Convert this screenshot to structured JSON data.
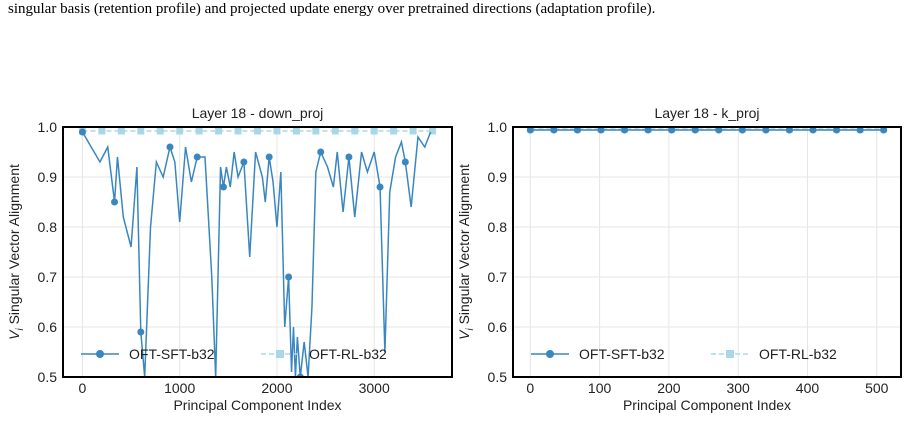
{
  "caption": "singular basis (retention profile) and projected update energy over pretrained directions (adaptation profile).",
  "colors": {
    "sft": "#3a87bf",
    "rl": "#a8d8e8",
    "grid": "#e6e6e6",
    "frame": "#000000"
  },
  "chart_data": [
    {
      "type": "line",
      "title": "Layer 18 - down_proj",
      "xlabel": "Principal Component Index",
      "ylabel": "V_i Singular Vector Alignment",
      "ylabel_parts": {
        "symbol": "V",
        "sub": "i",
        "rest": " Singular Vector Alignment"
      },
      "xlim": [
        -200,
        3800
      ],
      "ylim": [
        0.5,
        1.0
      ],
      "xticks": [
        0,
        1000,
        2000,
        3000
      ],
      "yticks": [
        0.5,
        0.6,
        0.7,
        0.8,
        0.9,
        1.0
      ],
      "xticklabels": [
        "0",
        "1000",
        "2000",
        "3000"
      ],
      "yticklabels": [
        "0.5",
        "0.6",
        "0.7",
        "0.8",
        "0.9",
        "1.0"
      ],
      "grid": true,
      "legend_position": "bottom",
      "series": [
        {
          "name": "OFT-SFT-b32",
          "style": "solid",
          "marker": "circle",
          "x": [
            0,
            60,
            120,
            180,
            260,
            330,
            360,
            420,
            500,
            560,
            600,
            640,
            700,
            760,
            830,
            900,
            950,
            1000,
            1060,
            1120,
            1180,
            1260,
            1330,
            1370,
            1420,
            1450,
            1480,
            1520,
            1560,
            1600,
            1660,
            1720,
            1780,
            1850,
            1880,
            1920,
            1960,
            2000,
            2040,
            2080,
            2120,
            2150,
            2170,
            2190,
            2210,
            2240,
            2280,
            2320,
            2360,
            2400,
            2450,
            2520,
            2580,
            2620,
            2680,
            2740,
            2800,
            2870,
            2930,
            3000,
            3060,
            3110,
            3160,
            3220,
            3280,
            3320,
            3380,
            3450,
            3520,
            3580
          ],
          "y": [
            0.99,
            0.97,
            0.95,
            0.93,
            0.96,
            0.85,
            0.94,
            0.82,
            0.76,
            0.92,
            0.59,
            0.5,
            0.8,
            0.93,
            0.9,
            0.96,
            0.93,
            0.81,
            0.96,
            0.89,
            0.94,
            0.94,
            0.7,
            0.5,
            0.92,
            0.88,
            0.92,
            0.88,
            0.95,
            0.9,
            0.93,
            0.74,
            0.95,
            0.9,
            0.85,
            0.94,
            0.89,
            0.8,
            0.91,
            0.6,
            0.7,
            0.51,
            0.6,
            0.5,
            0.58,
            0.5,
            0.57,
            0.5,
            0.64,
            0.91,
            0.95,
            0.92,
            0.88,
            0.95,
            0.83,
            0.94,
            0.82,
            0.95,
            0.91,
            0.95,
            0.88,
            0.55,
            0.87,
            0.94,
            0.97,
            0.93,
            0.84,
            0.98,
            0.96,
            0.99
          ]
        },
        {
          "name": "OFT-RL-b32",
          "style": "dashed",
          "marker": "square",
          "x": [
            0,
            200,
            400,
            600,
            800,
            1000,
            1200,
            1400,
            1600,
            1800,
            2000,
            2200,
            2400,
            2600,
            2800,
            3000,
            3200,
            3400,
            3600
          ],
          "y": [
            0.992,
            0.992,
            0.992,
            0.992,
            0.992,
            0.992,
            0.992,
            0.992,
            0.992,
            0.992,
            0.992,
            0.992,
            0.992,
            0.992,
            0.992,
            0.992,
            0.992,
            0.992,
            0.992
          ]
        }
      ]
    },
    {
      "type": "line",
      "title": "Layer 18 - k_proj",
      "xlabel": "Principal Component Index",
      "ylabel": "V_i Singular Vector Alignment",
      "ylabel_parts": {
        "symbol": "V",
        "sub": "i",
        "rest": " Singular Vector Alignment"
      },
      "xlim": [
        -25,
        535
      ],
      "ylim": [
        0.5,
        1.0
      ],
      "xticks": [
        0,
        100,
        200,
        300,
        400,
        500
      ],
      "yticks": [
        0.5,
        0.6,
        0.7,
        0.8,
        0.9,
        1.0
      ],
      "xticklabels": [
        "0",
        "100",
        "200",
        "300",
        "400",
        "500"
      ],
      "yticklabels": [
        "0.5",
        "0.6",
        "0.7",
        "0.8",
        "0.9",
        "1.0"
      ],
      "grid": true,
      "legend_position": "bottom",
      "series": [
        {
          "name": "OFT-SFT-b32",
          "style": "solid",
          "marker": "circle",
          "x": [
            0,
            34,
            68,
            102,
            136,
            170,
            204,
            238,
            272,
            306,
            340,
            374,
            408,
            442,
            476,
            510
          ],
          "y": [
            0.994,
            0.994,
            0.994,
            0.994,
            0.994,
            0.994,
            0.994,
            0.994,
            0.994,
            0.994,
            0.994,
            0.994,
            0.994,
            0.994,
            0.994,
            0.994
          ]
        },
        {
          "name": "OFT-RL-b32",
          "style": "dashed",
          "marker": "square",
          "x": [
            0,
            34,
            68,
            102,
            136,
            170,
            204,
            238,
            272,
            306,
            340,
            374,
            408,
            442,
            476,
            510
          ],
          "y": [
            0.996,
            0.996,
            0.996,
            0.996,
            0.996,
            0.996,
            0.996,
            0.996,
            0.996,
            0.996,
            0.996,
            0.996,
            0.996,
            0.996,
            0.996,
            0.996
          ]
        }
      ]
    }
  ]
}
